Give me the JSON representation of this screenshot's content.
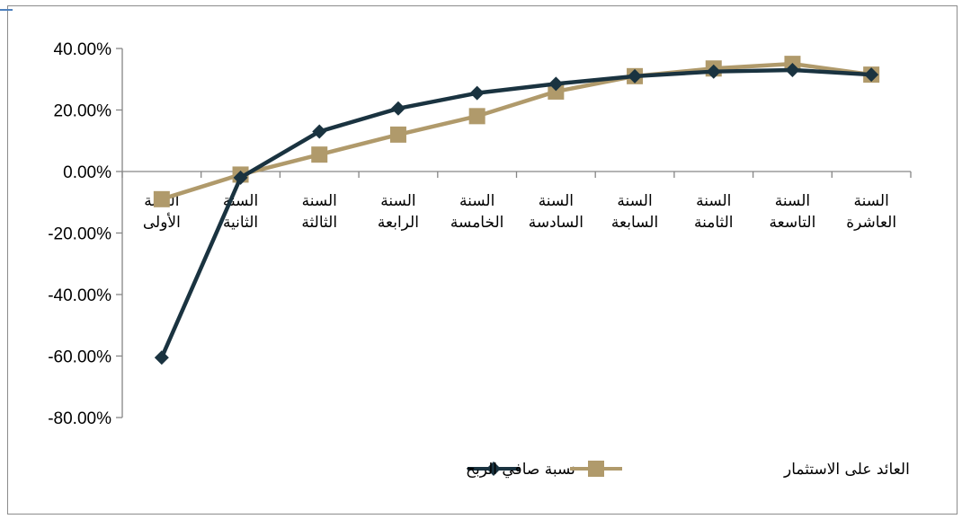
{
  "chart_data": {
    "type": "line",
    "title": "",
    "xlabel": "",
    "ylabel": "",
    "ylim": [
      -0.8,
      0.4
    ],
    "y_ticks": [
      "40.00%",
      "20.00%",
      "0.00%",
      "-20.00%",
      "-40.00%",
      "-60.00%",
      "-80.00%"
    ],
    "y_tick_values": [
      0.4,
      0.2,
      0.0,
      -0.2,
      -0.4,
      -0.6,
      -0.8
    ],
    "categories": [
      [
        "السنة",
        "الأولى"
      ],
      [
        "السنة",
        "الثانية"
      ],
      [
        "السنة",
        "الثالثة"
      ],
      [
        "السنة",
        "الرابعة"
      ],
      [
        "السنة",
        "الخامسة"
      ],
      [
        "السنة",
        "السادسة"
      ],
      [
        "السنة",
        "السابعة"
      ],
      [
        "السنة",
        "الثامنة"
      ],
      [
        "السنة",
        "التاسعة"
      ],
      [
        "السنة",
        "العاشرة"
      ]
    ],
    "series": [
      {
        "name": "نسبة صافي الربح",
        "color": "#1a3340",
        "marker": "diamond",
        "values": [
          -0.605,
          -0.02,
          0.13,
          0.205,
          0.255,
          0.285,
          0.31,
          0.325,
          0.33,
          0.315
        ]
      },
      {
        "name": "العائد على الاستثمار",
        "color": "#b09a6b",
        "marker": "square",
        "values": [
          -0.09,
          -0.01,
          0.055,
          0.12,
          0.18,
          0.26,
          0.31,
          0.335,
          0.35,
          0.315
        ]
      }
    ],
    "legend": "bottom",
    "grid": false
  }
}
